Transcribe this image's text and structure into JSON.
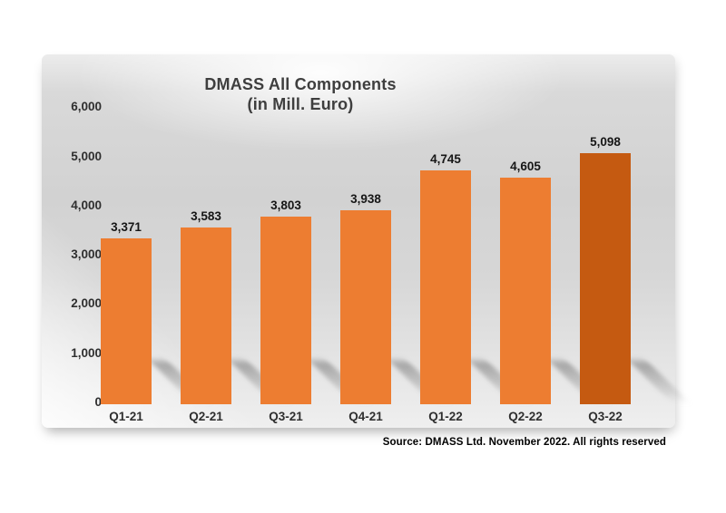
{
  "chart_data": {
    "type": "bar",
    "title": "DMASS All Components",
    "subtitle": "(in Mill. Euro)",
    "categories": [
      "Q1-21",
      "Q2-21",
      "Q3-21",
      "Q4-21",
      "Q1-22",
      "Q2-22",
      "Q3-22"
    ],
    "values": [
      3371,
      3583,
      3803,
      3938,
      4745,
      4605,
      5098
    ],
    "value_labels": [
      "3,371",
      "3,583",
      "3,803",
      "3,938",
      "4,745",
      "4,605",
      "5,098"
    ],
    "y_tick_labels": [
      "6,000",
      "5,000",
      "4,000",
      "3,000",
      "2,000",
      "1,000",
      "0"
    ],
    "y_tick_values": [
      6000,
      5000,
      4000,
      3000,
      2000,
      1000,
      0
    ],
    "ylim": [
      0,
      6000
    ],
    "grid": false,
    "legend": "none",
    "xlabel": "",
    "ylabel": "",
    "bar_color": "#ED7D31",
    "highlight_bar_color": "#C55A11",
    "highlight_index": 6,
    "source": "Source: DMASS Ltd. November 2022. All rights reserved"
  }
}
